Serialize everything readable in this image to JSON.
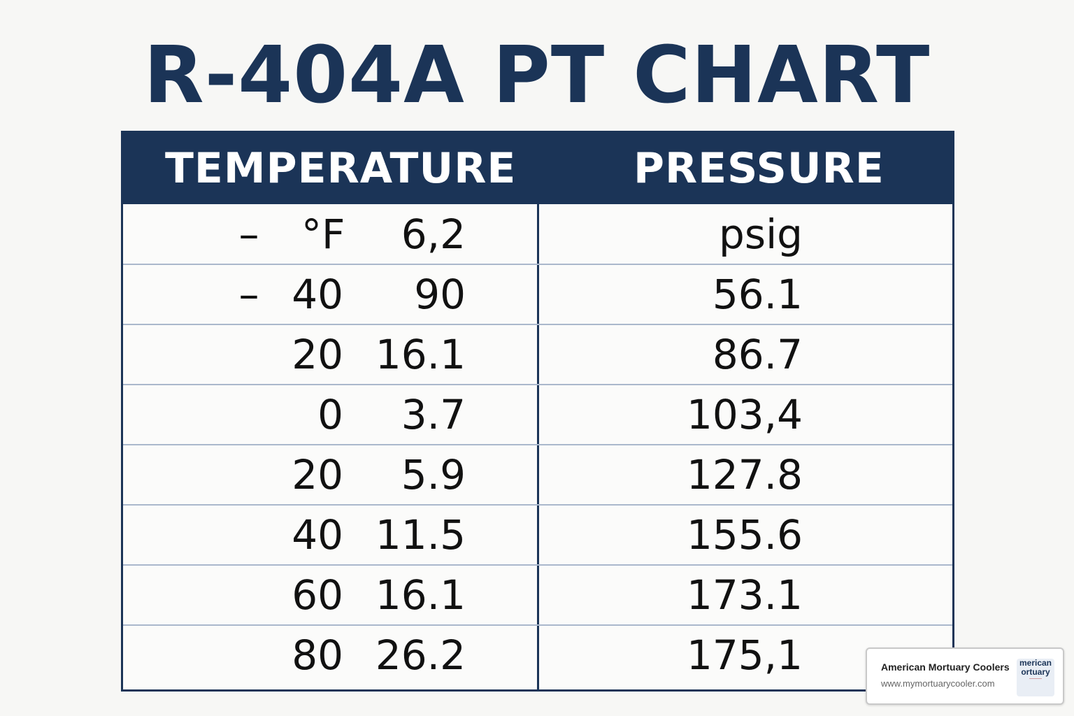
{
  "chart_data": {
    "type": "table",
    "title": "R-404A PT CHART",
    "columns": [
      "TEMPERATURE",
      "PRESSURE"
    ],
    "rows": [
      {
        "minus": "–",
        "temp": "°F",
        "mid": "6,2",
        "pressure": "psig"
      },
      {
        "minus": "–",
        "temp": "40",
        "mid": "90",
        "pressure": "56.1"
      },
      {
        "minus": "",
        "temp": "20",
        "mid": "16.1",
        "pressure": "86.7"
      },
      {
        "minus": "",
        "temp": "0",
        "mid": "3.7",
        "pressure": "103,4"
      },
      {
        "minus": "",
        "temp": "20",
        "mid": "5.9",
        "pressure": "127.8"
      },
      {
        "minus": "",
        "temp": "40",
        "mid": "11.5",
        "pressure": "155.6"
      },
      {
        "minus": "",
        "temp": "60",
        "mid": "16.1",
        "pressure": "173.1"
      },
      {
        "minus": "",
        "temp": "80",
        "mid": "26.2",
        "pressure": "175,1"
      }
    ]
  },
  "brand": {
    "name": "American Mortuary Coolers",
    "url": "www.mymortuarycooler.com",
    "logo_text_1": "merican",
    "logo_text_2": "ortuary"
  },
  "colors": {
    "header": "#1b3457",
    "title": "#1b3457",
    "row_line": "#aab8cc"
  }
}
